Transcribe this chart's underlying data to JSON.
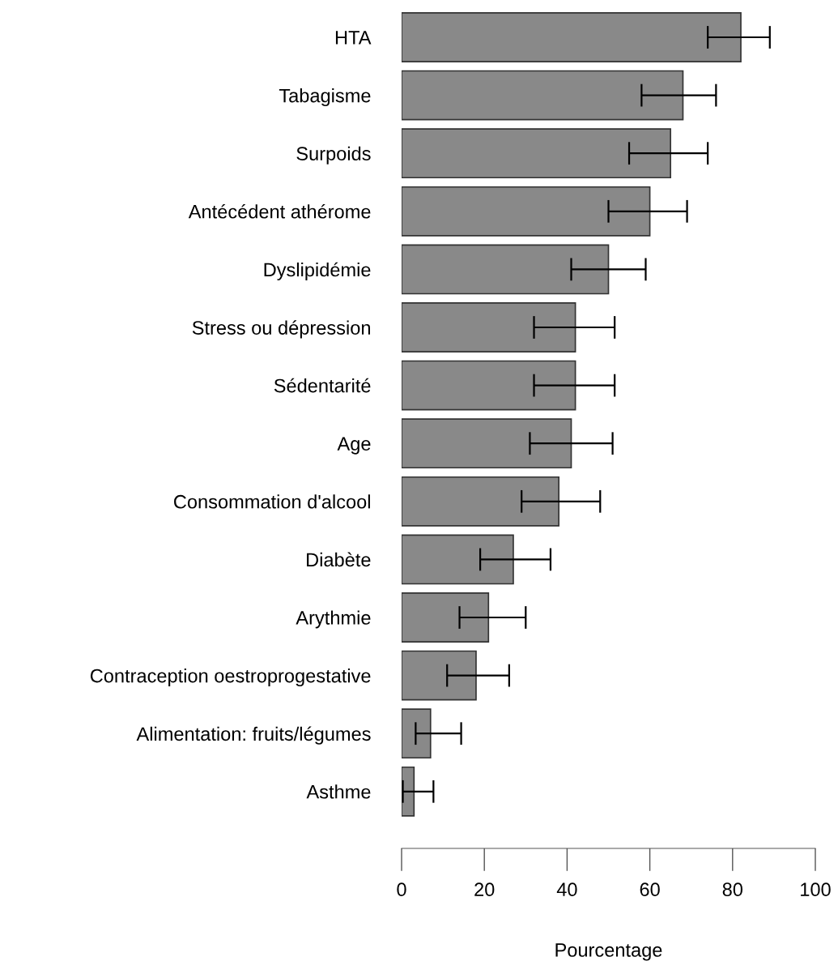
{
  "chart_data": {
    "type": "bar",
    "orientation": "horizontal",
    "xlabel": "Pourcentage",
    "categories": [
      "HTA",
      "Tabagisme",
      "Surpoids",
      "Antécédent athérome",
      "Dyslipidémie",
      "Stress ou dépression",
      "Sédentarité",
      "Age",
      "Consommation d'alcool",
      "Diabète",
      "Arythmie",
      "Contraception oestroprogestative",
      "Alimentation: fruits/légumes",
      "Asthme"
    ],
    "values": [
      82,
      68,
      65,
      60,
      50,
      42,
      42,
      41,
      38,
      27,
      21,
      18,
      7,
      3
    ],
    "errors": [
      [
        74,
        89
      ],
      [
        58,
        76
      ],
      [
        55,
        74
      ],
      [
        50,
        69
      ],
      [
        41,
        59
      ],
      [
        32,
        51.5
      ],
      [
        32,
        51.5
      ],
      [
        31,
        51
      ],
      [
        29,
        48
      ],
      [
        19,
        36
      ],
      [
        14,
        30
      ],
      [
        11,
        26
      ],
      [
        3.4,
        14.4
      ],
      [
        0.3,
        7.7
      ]
    ],
    "color": "#898989",
    "xlim": [
      0,
      100
    ],
    "xticks": [
      0,
      20,
      40,
      60,
      80,
      100
    ]
  }
}
